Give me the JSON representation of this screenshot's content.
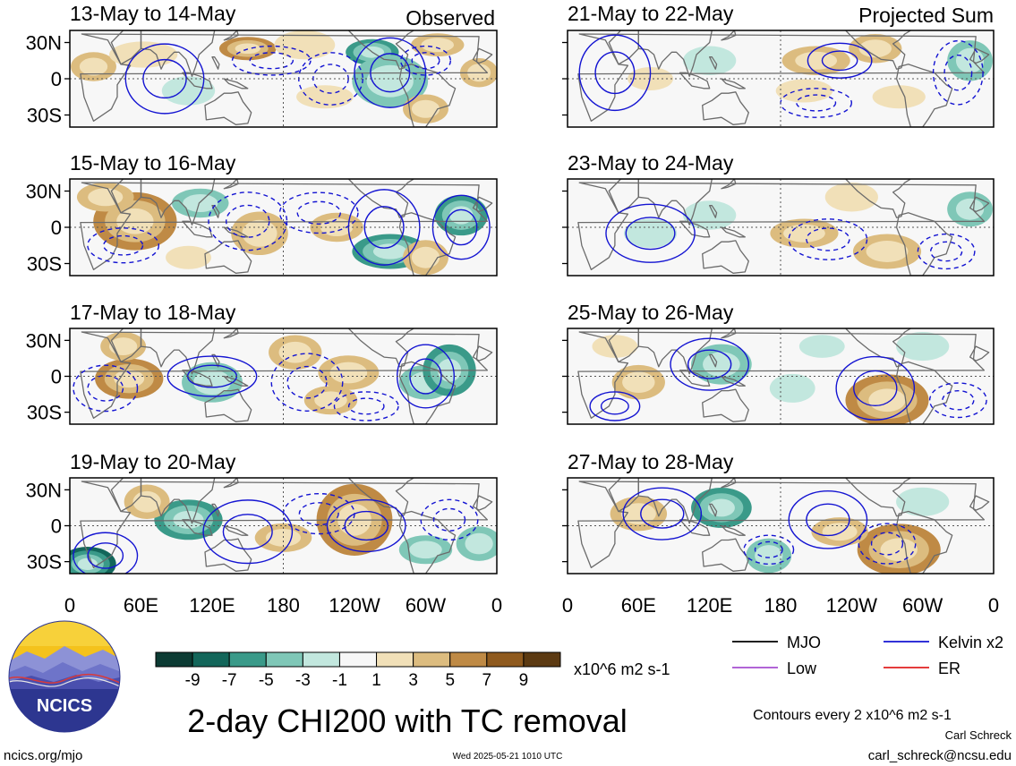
{
  "chart_data": {
    "type": "heatmap",
    "title": "2-day CHI200 with TC removal",
    "variable": "CHI200",
    "units": "x10^6 m2 s-1",
    "contour_note": "Contours every 2 x10^6 m2 s-1",
    "x_tick_labels": [
      "0",
      "60E",
      "120E",
      "180",
      "120W",
      "60W",
      "0"
    ],
    "y_tick_labels": [
      "30N",
      "0",
      "30S"
    ],
    "xlim": [
      0,
      360
    ],
    "ylim": [
      -40,
      40
    ],
    "colorbar": {
      "tick_labels": [
        "-9",
        "-7",
        "-5",
        "-3",
        "-1",
        "1",
        "3",
        "5",
        "7",
        "9"
      ],
      "colors": [
        "#0c3b33",
        "#13665a",
        "#3a9a89",
        "#7fc7b7",
        "#c2e7de",
        "#f7f7f7",
        "#f1e0b8",
        "#dcbc7f",
        "#bf8a45",
        "#8f5a1e",
        "#5c3a12"
      ]
    },
    "legend": [
      {
        "label": "MJO",
        "color": "#000000"
      },
      {
        "label": "Kelvin x2",
        "color": "#1414d2"
      },
      {
        "label": "Low",
        "color": "#a64ed1"
      },
      {
        "label": "ER",
        "color": "#e02020"
      }
    ],
    "column_labels": {
      "left": "Observed",
      "right": "Projected Sum"
    },
    "panels": [
      {
        "period": "13-May to 14-May",
        "column": "observed",
        "blobs": [
          [
            20,
            10,
            12,
            10,
            3
          ],
          [
            62,
            20,
            18,
            9,
            2
          ],
          [
            150,
            25,
            15,
            8,
            5
          ],
          [
            198,
            28,
            16,
            10,
            2
          ],
          [
            255,
            22,
            14,
            9,
            -5
          ],
          [
            270,
            -2,
            20,
            18,
            -4
          ],
          [
            310,
            28,
            14,
            8,
            3
          ],
          [
            300,
            -25,
            12,
            10,
            4
          ],
          [
            345,
            5,
            10,
            10,
            4
          ],
          [
            100,
            -10,
            14,
            10,
            -2
          ],
          [
            215,
            -15,
            15,
            8,
            2
          ]
        ],
        "contours": [
          [
            80,
            0,
            22,
            24,
            "#1414d2",
            false
          ],
          [
            270,
            5,
            20,
            24,
            "#1414d2",
            false
          ],
          [
            170,
            15,
            22,
            10,
            "#1414d2",
            true
          ],
          [
            220,
            0,
            18,
            18,
            "#1414d2",
            true
          ],
          [
            300,
            15,
            14,
            10,
            "#1414d2",
            true
          ]
        ]
      },
      {
        "period": "15-May to 16-May",
        "column": "observed",
        "blobs": [
          [
            55,
            5,
            22,
            20,
            6
          ],
          [
            30,
            25,
            15,
            10,
            3
          ],
          [
            110,
            20,
            15,
            10,
            -3
          ],
          [
            160,
            -5,
            15,
            15,
            3
          ],
          [
            225,
            0,
            14,
            10,
            3
          ],
          [
            270,
            -20,
            20,
            12,
            -5
          ],
          [
            300,
            -25,
            12,
            12,
            4
          ],
          [
            330,
            10,
            14,
            14,
            -6
          ],
          [
            100,
            -25,
            12,
            8,
            2
          ]
        ],
        "contours": [
          [
            265,
            0,
            20,
            26,
            "#1414d2",
            false
          ],
          [
            150,
            5,
            22,
            20,
            "#1414d2",
            true
          ],
          [
            210,
            12,
            22,
            14,
            "#1414d2",
            true
          ],
          [
            330,
            0,
            16,
            22,
            "#1414d2",
            false
          ],
          [
            45,
            -15,
            20,
            12,
            "#1414d2",
            true
          ]
        ]
      },
      {
        "period": "17-May to 18-May",
        "column": "observed",
        "blobs": [
          [
            50,
            -2,
            18,
            14,
            5
          ],
          [
            45,
            25,
            12,
            10,
            3
          ],
          [
            120,
            -5,
            16,
            14,
            -4
          ],
          [
            190,
            20,
            14,
            12,
            3
          ],
          [
            235,
            3,
            16,
            12,
            4
          ],
          [
            300,
            -5,
            14,
            12,
            -4
          ],
          [
            320,
            5,
            14,
            18,
            -5
          ],
          [
            220,
            -20,
            14,
            10,
            3
          ]
        ],
        "contours": [
          [
            300,
            0,
            16,
            22,
            "#1414d2",
            false
          ],
          [
            120,
            0,
            25,
            14,
            "#1414d2",
            false
          ],
          [
            200,
            -5,
            20,
            20,
            "#1414d2",
            true
          ],
          [
            30,
            -10,
            18,
            16,
            "#1414d2",
            true
          ],
          [
            250,
            -25,
            18,
            10,
            "#1414d2",
            true
          ]
        ]
      },
      {
        "period": "19-May to 20-May",
        "column": "observed",
        "blobs": [
          [
            240,
            5,
            20,
            25,
            6
          ],
          [
            180,
            -10,
            15,
            10,
            3
          ],
          [
            100,
            5,
            18,
            14,
            -5
          ],
          [
            15,
            -32,
            15,
            12,
            -8
          ],
          [
            65,
            20,
            12,
            12,
            3
          ],
          [
            300,
            -20,
            14,
            10,
            -3
          ],
          [
            345,
            -15,
            12,
            12,
            -3
          ]
        ],
        "contours": [
          [
            150,
            -5,
            25,
            22,
            "#1414d2",
            false
          ],
          [
            250,
            0,
            22,
            18,
            "#1414d2",
            false
          ],
          [
            30,
            -25,
            18,
            16,
            "#1414d2",
            false
          ],
          [
            210,
            10,
            20,
            14,
            "#1414d2",
            true
          ],
          [
            320,
            5,
            16,
            14,
            "#1414d2",
            true
          ]
        ]
      },
      {
        "period": "21-May to 22-May",
        "column": "projected",
        "blobs": [
          [
            210,
            15,
            18,
            10,
            3
          ],
          [
            260,
            25,
            14,
            10,
            4
          ],
          [
            70,
            0,
            12,
            8,
            2
          ],
          [
            200,
            -10,
            15,
            8,
            2
          ],
          [
            280,
            -15,
            14,
            8,
            2
          ],
          [
            340,
            15,
            12,
            14,
            -4
          ],
          [
            120,
            15,
            14,
            10,
            -2
          ]
        ],
        "contours": [
          [
            40,
            5,
            20,
            26,
            "#1414d2",
            false
          ],
          [
            230,
            15,
            18,
            12,
            "#1414d2",
            false
          ],
          [
            330,
            5,
            14,
            22,
            "#1414d2",
            true
          ],
          [
            210,
            -20,
            20,
            10,
            "#1414d2",
            true
          ]
        ]
      },
      {
        "period": "23-May to 24-May",
        "column": "projected",
        "blobs": [
          [
            200,
            -5,
            18,
            10,
            3
          ],
          [
            270,
            -20,
            18,
            12,
            3
          ],
          [
            240,
            25,
            14,
            10,
            2
          ],
          [
            70,
            -5,
            14,
            10,
            -2
          ],
          [
            340,
            15,
            12,
            12,
            -4
          ],
          [
            120,
            10,
            14,
            10,
            -2
          ]
        ],
        "contours": [
          [
            70,
            -5,
            25,
            20,
            "#1414d2",
            false
          ],
          [
            220,
            -10,
            22,
            14,
            "#1414d2",
            true
          ],
          [
            320,
            -20,
            16,
            12,
            "#1414d2",
            true
          ]
        ]
      },
      {
        "period": "25-May to 26-May",
        "column": "projected",
        "blobs": [
          [
            60,
            -5,
            14,
            12,
            3
          ],
          [
            270,
            -20,
            22,
            18,
            5
          ],
          [
            130,
            10,
            16,
            14,
            -4
          ],
          [
            190,
            -10,
            12,
            10,
            -2
          ],
          [
            215,
            25,
            12,
            8,
            -2
          ],
          [
            300,
            25,
            14,
            10,
            -2
          ],
          [
            40,
            25,
            12,
            8,
            2
          ]
        ],
        "contours": [
          [
            120,
            10,
            22,
            18,
            "#1414d2",
            false
          ],
          [
            260,
            -10,
            22,
            22,
            "#1414d2",
            false
          ],
          [
            330,
            -20,
            16,
            12,
            "#1414d2",
            true
          ],
          [
            40,
            -25,
            14,
            10,
            "#1414d2",
            false
          ]
        ]
      },
      {
        "period": "27-May to 28-May",
        "column": "projected",
        "blobs": [
          [
            280,
            -20,
            22,
            18,
            5
          ],
          [
            230,
            -5,
            15,
            10,
            3
          ],
          [
            60,
            10,
            15,
            12,
            3
          ],
          [
            130,
            15,
            16,
            14,
            -5
          ],
          [
            170,
            -25,
            12,
            12,
            -3
          ],
          [
            300,
            20,
            14,
            10,
            -2
          ]
        ],
        "contours": [
          [
            220,
            5,
            22,
            20,
            "#1414d2",
            false
          ],
          [
            80,
            10,
            22,
            18,
            "#1414d2",
            false
          ],
          [
            270,
            -15,
            16,
            14,
            "#1414d2",
            true
          ],
          [
            170,
            -20,
            14,
            10,
            "#1414d2",
            true
          ]
        ]
      }
    ]
  },
  "logo": {
    "text": "NCICS"
  },
  "footer": {
    "left_url": "ncics.org/mjo",
    "timestamp": "Wed 2025-05-21 1010 UTC",
    "author": "Carl Schreck",
    "email": "carl_schreck@ncsu.edu"
  }
}
